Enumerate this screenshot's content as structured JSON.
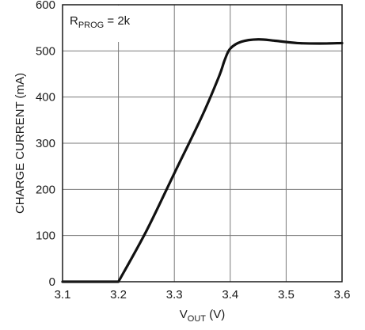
{
  "chart_data": {
    "type": "line",
    "xlabel": {
      "main": "V",
      "sub": "OUT",
      "unit": " (V)"
    },
    "ylabel": "CHARGE CURRENT (mA)",
    "xlim": [
      3.1,
      3.6
    ],
    "ylim": [
      0,
      600
    ],
    "xticks": [
      "3.1",
      "3.2",
      "3.3",
      "3.4",
      "3.5",
      "3.6"
    ],
    "yticks": [
      "0",
      "100",
      "200",
      "300",
      "400",
      "500",
      "600"
    ],
    "grid": true,
    "annotation": {
      "main": "R",
      "sub": "PROG",
      "rest": " = 2k"
    },
    "series": [
      {
        "x": [
          3.1,
          3.2,
          3.25,
          3.3,
          3.35,
          3.38,
          3.39,
          3.4,
          3.42,
          3.45,
          3.48,
          3.52,
          3.56,
          3.6
        ],
        "y": [
          0,
          0,
          110,
          235,
          360,
          445,
          480,
          505,
          520,
          525,
          522,
          517,
          516,
          517
        ]
      }
    ]
  }
}
